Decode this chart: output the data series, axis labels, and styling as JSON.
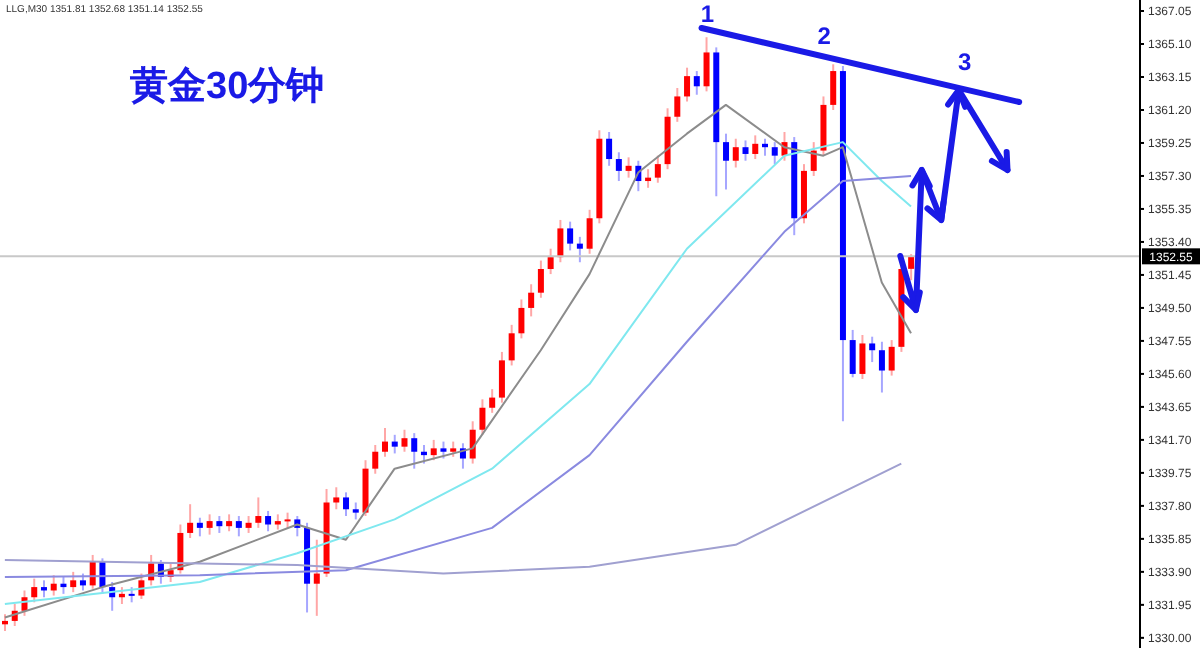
{
  "chart_data": {
    "type": "candlestick",
    "title": "黄金30分钟",
    "annotations": [
      "LLG,M30 1351.81 1352.68 1351.14 1352.55",
      "1",
      "2",
      "3"
    ],
    "categories": [
      null,
      null,
      null,
      null,
      null,
      null,
      null,
      null,
      null,
      null,
      null,
      null,
      null,
      null,
      null,
      null,
      null,
      null,
      null,
      null,
      null,
      null,
      null,
      null,
      null,
      null,
      null,
      null,
      null,
      null,
      null,
      null,
      null,
      null,
      null,
      null,
      null,
      null,
      null,
      null,
      null,
      null,
      null,
      null,
      null,
      null,
      null,
      null,
      null,
      null,
      null,
      null,
      null,
      null,
      null,
      null,
      null,
      null,
      null,
      null,
      null,
      null,
      null,
      null,
      null,
      null,
      null,
      null,
      null,
      null,
      null,
      null,
      null,
      null,
      null,
      null,
      null,
      null,
      null,
      null,
      null,
      null,
      null,
      null,
      null,
      null,
      null,
      null,
      null,
      null,
      null,
      null,
      null,
      null,
      null,
      null,
      null,
      null,
      null,
      null,
      null,
      null,
      null,
      null,
      null,
      null,
      null,
      null,
      null,
      null,
      null,
      null,
      null,
      null,
      null,
      null,
      null
    ],
    "ohlc": [
      [
        1330.8,
        1331.4,
        1330.4,
        1331.0
      ],
      [
        1331.0,
        1332.0,
        1330.7,
        1331.6
      ],
      [
        1331.6,
        1332.8,
        1331.3,
        1332.4
      ],
      [
        1332.4,
        1333.5,
        1332.1,
        1333.0
      ],
      [
        1333.0,
        1333.4,
        1332.4,
        1332.8
      ],
      [
        1332.8,
        1333.7,
        1332.5,
        1333.2
      ],
      [
        1333.2,
        1333.6,
        1332.6,
        1333.0
      ],
      [
        1333.0,
        1333.9,
        1332.7,
        1333.4
      ],
      [
        1333.4,
        1333.8,
        1332.8,
        1333.1
      ],
      [
        1333.1,
        1334.9,
        1332.9,
        1334.5
      ],
      [
        1334.5,
        1334.7,
        1332.6,
        1333.0
      ],
      [
        1333.0,
        1333.3,
        1331.6,
        1332.4
      ],
      [
        1332.4,
        1333.0,
        1332.0,
        1332.6
      ],
      [
        1332.6,
        1333.0,
        1332.1,
        1332.5
      ],
      [
        1332.5,
        1333.8,
        1332.3,
        1333.4
      ],
      [
        1333.4,
        1334.9,
        1333.1,
        1334.4
      ],
      [
        1334.4,
        1334.6,
        1333.2,
        1333.6
      ],
      [
        1333.6,
        1334.4,
        1333.3,
        1334.0
      ],
      [
        1334.0,
        1336.7,
        1333.8,
        1336.2
      ],
      [
        1336.2,
        1337.9,
        1335.9,
        1336.8
      ],
      [
        1336.8,
        1337.1,
        1336.0,
        1336.5
      ],
      [
        1336.5,
        1337.3,
        1336.1,
        1336.9
      ],
      [
        1336.9,
        1337.2,
        1336.2,
        1336.6
      ],
      [
        1336.6,
        1337.3,
        1336.3,
        1336.9
      ],
      [
        1336.9,
        1337.2,
        1336.0,
        1336.5
      ],
      [
        1336.5,
        1337.2,
        1336.2,
        1336.8
      ],
      [
        1336.8,
        1338.3,
        1336.5,
        1337.2
      ],
      [
        1337.2,
        1337.5,
        1336.3,
        1336.7
      ],
      [
        1336.7,
        1337.3,
        1336.4,
        1336.9
      ],
      [
        1336.9,
        1337.4,
        1336.5,
        1337.0
      ],
      [
        1337.0,
        1337.2,
        1336.0,
        1336.5
      ],
      [
        1336.5,
        1336.8,
        1331.5,
        1333.2
      ],
      [
        1333.2,
        1335.8,
        1331.3,
        1333.8
      ],
      [
        1333.8,
        1338.8,
        1333.6,
        1338.0
      ],
      [
        1338.0,
        1338.9,
        1337.6,
        1338.3
      ],
      [
        1338.3,
        1338.6,
        1337.2,
        1337.6
      ],
      [
        1337.6,
        1338.0,
        1337.0,
        1337.4
      ],
      [
        1337.4,
        1340.5,
        1337.2,
        1340.0
      ],
      [
        1340.0,
        1341.4,
        1339.7,
        1341.0
      ],
      [
        1341.0,
        1342.4,
        1340.7,
        1341.6
      ],
      [
        1341.6,
        1342.0,
        1340.9,
        1341.3
      ],
      [
        1341.3,
        1342.3,
        1341.0,
        1341.8
      ],
      [
        1341.8,
        1342.1,
        1340.0,
        1341.0
      ],
      [
        1341.0,
        1341.4,
        1340.3,
        1340.8
      ],
      [
        1340.8,
        1341.7,
        1340.5,
        1341.2
      ],
      [
        1341.2,
        1341.6,
        1340.6,
        1341.0
      ],
      [
        1341.0,
        1341.6,
        1340.7,
        1341.2
      ],
      [
        1341.2,
        1341.5,
        1340.0,
        1340.6
      ],
      [
        1340.6,
        1342.8,
        1340.3,
        1342.3
      ],
      [
        1342.3,
        1344.1,
        1342.0,
        1343.6
      ],
      [
        1343.6,
        1344.7,
        1343.3,
        1344.2
      ],
      [
        1344.2,
        1346.9,
        1343.9,
        1346.4
      ],
      [
        1346.4,
        1348.5,
        1346.1,
        1348.0
      ],
      [
        1348.0,
        1350.0,
        1347.7,
        1349.5
      ],
      [
        1349.5,
        1350.9,
        1349.0,
        1350.4
      ],
      [
        1350.4,
        1352.3,
        1350.1,
        1351.8
      ],
      [
        1351.8,
        1353.0,
        1351.5,
        1352.5
      ],
      [
        1352.5,
        1354.7,
        1352.2,
        1354.2
      ],
      [
        1354.2,
        1354.6,
        1352.9,
        1353.3
      ],
      [
        1353.3,
        1353.7,
        1352.2,
        1353.0
      ],
      [
        1353.0,
        1355.3,
        1352.7,
        1354.8
      ],
      [
        1354.8,
        1360.0,
        1354.5,
        1359.5
      ],
      [
        1359.5,
        1359.9,
        1357.9,
        1358.3
      ],
      [
        1358.3,
        1358.7,
        1357.0,
        1357.6
      ],
      [
        1357.6,
        1358.4,
        1357.2,
        1357.9
      ],
      [
        1357.9,
        1358.2,
        1356.4,
        1357.0
      ],
      [
        1357.0,
        1357.7,
        1356.6,
        1357.2
      ],
      [
        1357.2,
        1358.5,
        1356.9,
        1358.0
      ],
      [
        1358.0,
        1361.3,
        1357.7,
        1360.8
      ],
      [
        1360.8,
        1362.5,
        1360.5,
        1362.0
      ],
      [
        1362.0,
        1363.7,
        1361.7,
        1363.2
      ],
      [
        1363.2,
        1363.5,
        1362.1,
        1362.6
      ],
      [
        1362.6,
        1365.5,
        1362.3,
        1364.6
      ],
      [
        1364.6,
        1364.9,
        1356.1,
        1359.3
      ],
      [
        1359.3,
        1359.8,
        1356.5,
        1358.2
      ],
      [
        1358.2,
        1359.5,
        1357.8,
        1359.0
      ],
      [
        1359.0,
        1359.4,
        1358.2,
        1358.6
      ],
      [
        1358.6,
        1359.7,
        1358.3,
        1359.2
      ],
      [
        1359.2,
        1359.5,
        1358.5,
        1359.0
      ],
      [
        1359.0,
        1359.3,
        1358.0,
        1358.5
      ],
      [
        1358.5,
        1359.9,
        1358.2,
        1359.3
      ],
      [
        1359.3,
        1359.6,
        1353.8,
        1354.8
      ],
      [
        1354.8,
        1358.0,
        1354.5,
        1357.6
      ],
      [
        1357.6,
        1359.3,
        1357.3,
        1358.8
      ],
      [
        1358.8,
        1362.0,
        1358.5,
        1361.5
      ],
      [
        1361.5,
        1363.9,
        1361.2,
        1363.5
      ],
      [
        1363.5,
        1363.8,
        1342.8,
        1347.6
      ],
      [
        1347.6,
        1348.2,
        1345.4,
        1345.6
      ],
      [
        1345.6,
        1347.9,
        1345.3,
        1347.4
      ],
      [
        1347.4,
        1347.8,
        1346.3,
        1347.0
      ],
      [
        1347.0,
        1347.5,
        1344.5,
        1345.8
      ],
      [
        1345.8,
        1347.6,
        1345.5,
        1347.2
      ],
      [
        1347.2,
        1352.2,
        1346.9,
        1351.8
      ],
      [
        1351.81,
        1352.68,
        1351.14,
        1352.55
      ],
      null,
      null,
      null,
      null,
      null,
      null,
      null,
      null,
      null,
      null,
      null,
      null,
      null,
      null,
      null,
      null,
      null,
      null,
      null,
      null,
      null,
      null,
      null
    ],
    "colors": [
      "#ff0000",
      "#ff0000",
      "#ff0000",
      "#ff0000",
      "#0000ff",
      "#ff0000",
      "#0000ff",
      "#ff0000",
      "#0000ff",
      "#ff0000",
      "#0000ff",
      "#0000ff",
      "#ff0000",
      "#0000ff",
      "#ff0000",
      "#ff0000",
      "#0000ff",
      "#ff0000",
      "#ff0000",
      "#ff0000",
      "#0000ff",
      "#ff0000",
      "#0000ff",
      "#ff0000",
      "#0000ff",
      "#ff0000",
      "#ff0000",
      "#0000ff",
      "#ff0000",
      "#ff0000",
      "#0000ff",
      "#0000ff",
      "#ff0000",
      "#ff0000",
      "#ff0000",
      "#0000ff",
      "#0000ff",
      "#ff0000",
      "#ff0000",
      "#ff0000",
      "#0000ff",
      "#ff0000",
      "#0000ff",
      "#0000ff",
      "#ff0000",
      "#0000ff",
      "#ff0000",
      "#0000ff",
      "#ff0000",
      "#ff0000",
      "#ff0000",
      "#ff0000",
      "#ff0000",
      "#ff0000",
      "#ff0000",
      "#ff0000",
      "#ff0000",
      "#ff0000",
      "#0000ff",
      "#0000ff",
      "#ff0000",
      "#ff0000",
      "#0000ff",
      "#0000ff",
      "#ff0000",
      "#0000ff",
      "#ff0000",
      "#ff0000",
      "#ff0000",
      "#ff0000",
      "#ff0000",
      "#0000ff",
      "#ff0000",
      "#0000ff",
      "#0000ff",
      "#ff0000",
      "#0000ff",
      "#ff0000",
      "#0000ff",
      "#0000ff",
      "#ff0000",
      "#0000ff",
      "#ff0000",
      "#ff0000",
      "#ff0000",
      "#ff0000",
      "#0000ff",
      "#0000ff",
      "#ff0000",
      "#0000ff",
      "#0000ff",
      "#ff0000",
      "#ff0000",
      "#ff0000",
      null,
      null,
      null,
      null,
      null,
      null,
      null,
      null,
      null,
      null,
      null,
      null,
      null,
      null,
      null,
      null,
      null,
      null,
      null,
      null,
      null,
      null,
      null
    ],
    "ylim": [
      1329.4,
      1367.7
    ],
    "yticks": [
      1367.05,
      {
        "value": 1365.1,
        "label": "1365.10"
      },
      1363.15,
      {
        "value": 1361.2,
        "label": "1361.20"
      },
      1359.25,
      {
        "value": 1357.3,
        "label": "1357.30"
      },
      1355.35,
      {
        "value": 1353.4,
        "label": "1353.40"
      },
      1351.45,
      {
        "value": 1349.5,
        "label": "1349.50"
      },
      1347.55,
      {
        "value": 1345.6,
        "label": "1345.60"
      },
      1343.65,
      {
        "value": 1341.7,
        "label": "1341.70"
      },
      1339.75,
      {
        "value": 1337.8,
        "label": "1337.80"
      },
      1335.85,
      {
        "value": 1333.9,
        "label": "1333.90"
      },
      1331.95,
      {
        "value": 1330,
        "label": "1330.00"
      }
    ],
    "tick_labels": "y",
    "ref_lines": [
      {
        "axis": "y",
        "value": 1352.55,
        "label": "1352.55",
        "color": "#c8c8c8"
      }
    ],
    "series": [
      {
        "type": "line",
        "color": "#8c8c8c",
        "values": [
          1331.2,
          null,
          null,
          null,
          null,
          null,
          null,
          null,
          null,
          null,
          1333.0,
          null,
          null,
          null,
          null,
          null,
          null,
          null,
          null,
          null,
          1334.5,
          null,
          null,
          null,
          null,
          null,
          null,
          null,
          null,
          null,
          1336.7,
          null,
          null,
          null,
          null,
          1335.8,
          null,
          null,
          null,
          null,
          1340.0,
          null,
          null,
          null,
          null,
          null,
          null,
          null,
          1341.2,
          null,
          null,
          null,
          null,
          null,
          null,
          1347.0,
          null,
          null,
          null,
          null,
          1351.5,
          null,
          null,
          null,
          null,
          1357.5,
          null,
          null,
          null,
          null,
          1359.8,
          null,
          null,
          null,
          1361.5,
          null,
          null,
          null,
          null,
          null,
          1359.0,
          null,
          null,
          null,
          1358.5,
          null,
          1359.0,
          null,
          null,
          null,
          1351.0,
          null,
          null,
          1348.0,
          null,
          null,
          null,
          null,
          null,
          null,
          null,
          null,
          null,
          null,
          null,
          null,
          null,
          null,
          null,
          null,
          null,
          null,
          null,
          null,
          null,
          null,
          null
        ]
      },
      {
        "type": "line",
        "color": "#7fe8ef",
        "values": [
          1332.0,
          null,
          null,
          null,
          null,
          null,
          null,
          null,
          null,
          null,
          null,
          null,
          null,
          null,
          null,
          null,
          null,
          null,
          null,
          null,
          1333.3,
          null,
          null,
          null,
          null,
          null,
          null,
          null,
          null,
          null,
          1335.0,
          null,
          null,
          null,
          null,
          null,
          null,
          null,
          null,
          null,
          1337.0,
          null,
          null,
          null,
          null,
          null,
          null,
          null,
          null,
          null,
          1340.0,
          null,
          null,
          null,
          null,
          null,
          null,
          null,
          null,
          null,
          1345.0,
          null,
          null,
          null,
          null,
          null,
          null,
          null,
          null,
          null,
          1353.0,
          null,
          null,
          null,
          null,
          null,
          null,
          null,
          null,
          null,
          1358.5,
          null,
          null,
          null,
          null,
          null,
          1359.3,
          null,
          null,
          null,
          1357.0,
          null,
          null,
          1355.5,
          null,
          null,
          null,
          null,
          null,
          null,
          null,
          null,
          null,
          null,
          null,
          null,
          null,
          null,
          null,
          null,
          null,
          null,
          null,
          null,
          null,
          null,
          null
        ]
      },
      {
        "type": "line",
        "color": "#8a8ae0",
        "values": [
          1333.6,
          null,
          null,
          null,
          null,
          null,
          null,
          null,
          null,
          null,
          null,
          null,
          null,
          null,
          null,
          null,
          null,
          null,
          null,
          null,
          1333.7,
          null,
          null,
          null,
          null,
          null,
          null,
          null,
          null,
          null,
          null,
          null,
          null,
          null,
          null,
          1334.0,
          null,
          null,
          null,
          null,
          null,
          null,
          null,
          null,
          null,
          null,
          null,
          null,
          null,
          null,
          1336.5,
          null,
          null,
          null,
          null,
          null,
          null,
          null,
          null,
          null,
          1340.8,
          null,
          null,
          null,
          null,
          null,
          null,
          null,
          null,
          null,
          1347.5,
          null,
          null,
          null,
          null,
          null,
          null,
          null,
          null,
          null,
          1354.0,
          null,
          null,
          null,
          null,
          null,
          1357.0,
          null,
          null,
          null,
          null,
          null,
          null,
          1357.3,
          null,
          null,
          null,
          null,
          null,
          null,
          null,
          null,
          null,
          null,
          null,
          null,
          null,
          null,
          null,
          null,
          null,
          null,
          null,
          null,
          null,
          null,
          null
        ]
      },
      {
        "type": "line",
        "color": "#a0a0d0",
        "values": [
          1334.6,
          null,
          null,
          null,
          null,
          null,
          null,
          null,
          null,
          null,
          null,
          null,
          null,
          null,
          null,
          null,
          null,
          null,
          null,
          null,
          null,
          null,
          null,
          null,
          null,
          null,
          null,
          null,
          null,
          null,
          1334.3,
          null,
          null,
          null,
          null,
          null,
          null,
          null,
          null,
          null,
          null,
          null,
          null,
          null,
          null,
          1333.8,
          null,
          null,
          null,
          null,
          null,
          null,
          null,
          null,
          null,
          null,
          null,
          null,
          null,
          null,
          1334.2,
          null,
          null,
          null,
          null,
          null,
          null,
          null,
          null,
          null,
          null,
          null,
          null,
          null,
          null,
          1335.5,
          null,
          null,
          null,
          null,
          null,
          null,
          null,
          null,
          null,
          null,
          null,
          null,
          null,
          null,
          null,
          null,
          1340.3,
          null,
          null,
          null,
          null,
          null,
          null,
          null,
          null,
          null,
          null,
          null,
          null,
          null,
          null,
          null,
          null,
          null,
          null,
          null,
          null,
          null,
          null,
          null,
          null
        ]
      }
    ]
  }
}
